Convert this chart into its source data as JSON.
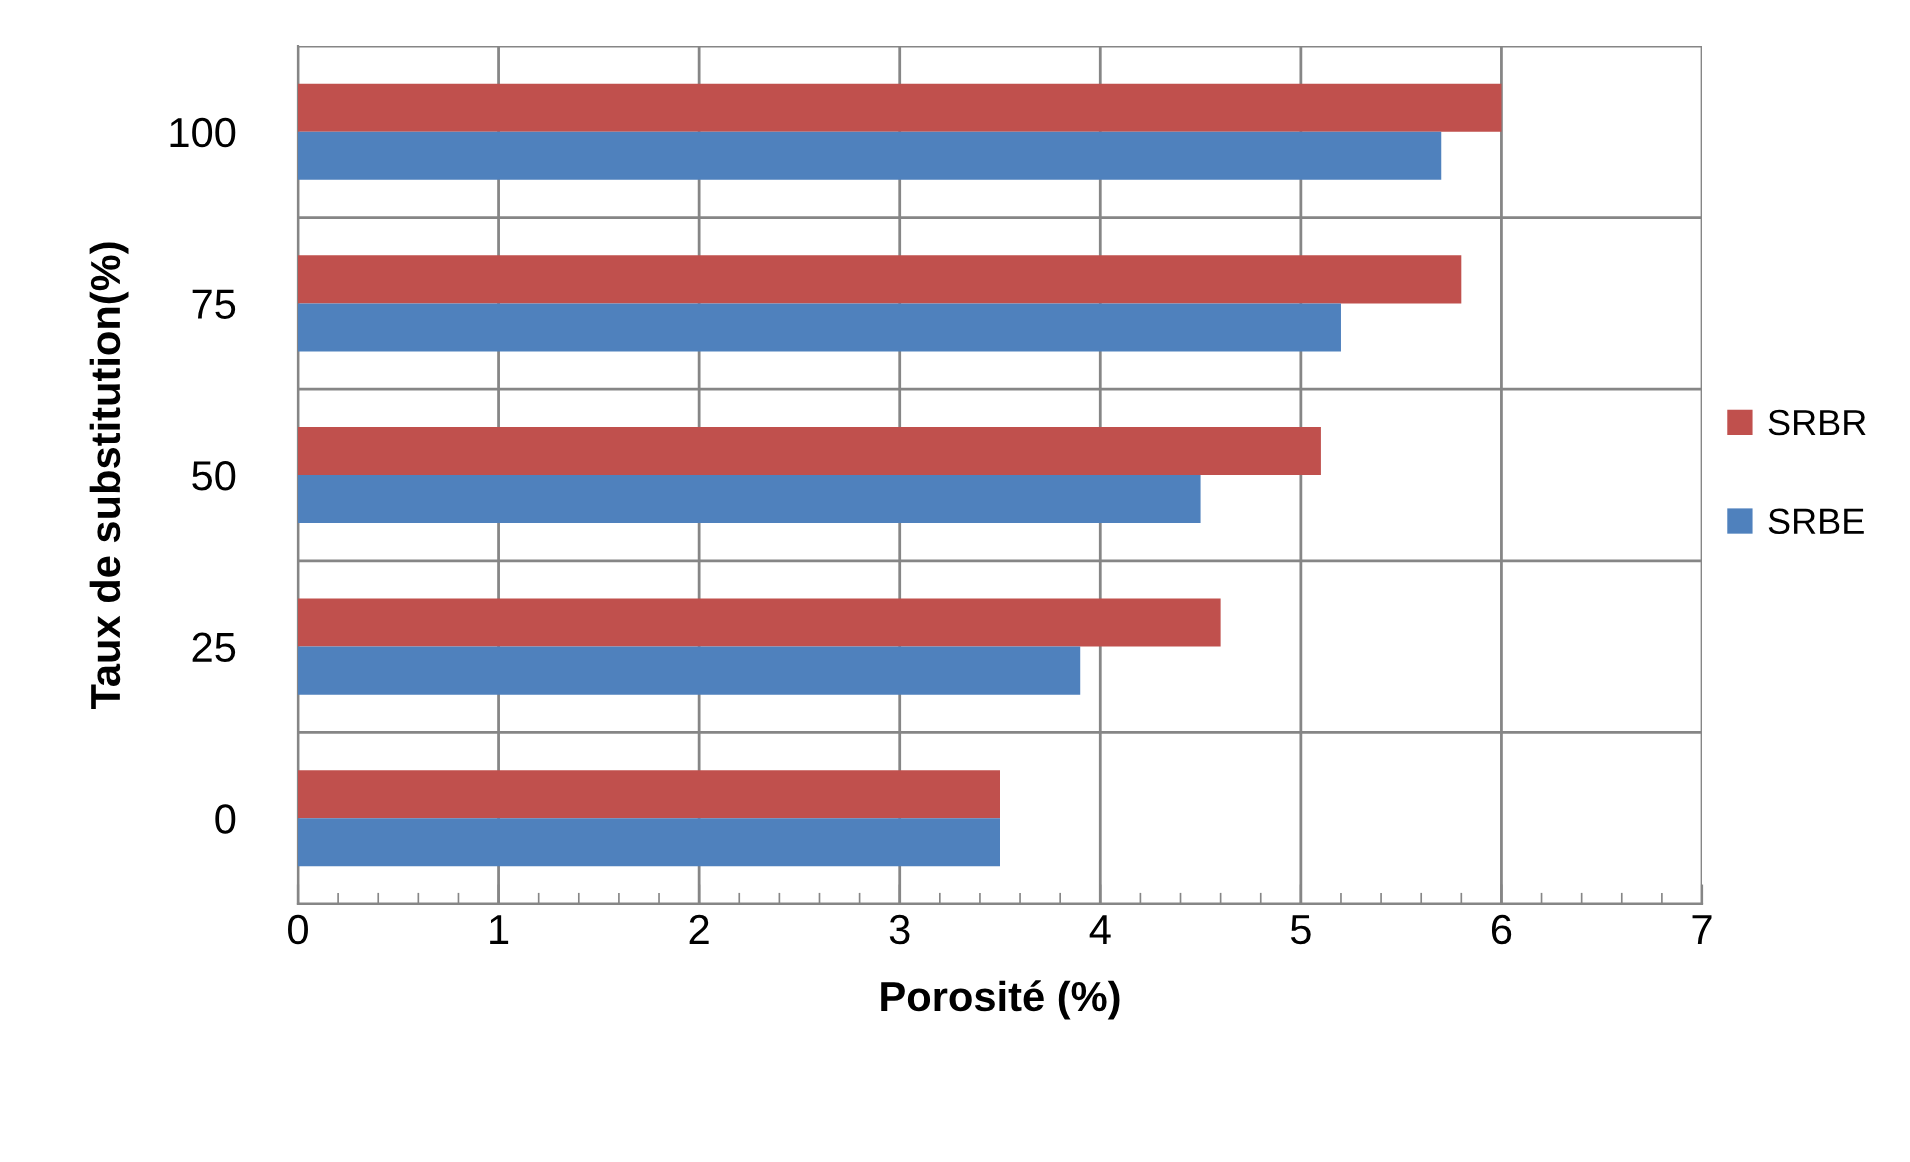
{
  "chart_data": {
    "type": "bar",
    "orientation": "horizontal",
    "xlabel": "Porosité (%)",
    "ylabel": "Taux de substitution(%)",
    "categories": [
      "100",
      "75",
      "50",
      "25",
      "0"
    ],
    "series": [
      {
        "name": "SRBR",
        "color": "#c0504d",
        "values": [
          6.0,
          5.8,
          5.1,
          4.6,
          3.5
        ]
      },
      {
        "name": "SRBE",
        "color": "#4f81bd",
        "values": [
          5.7,
          5.2,
          4.5,
          3.9,
          3.5
        ]
      }
    ],
    "xlim": [
      0,
      7
    ],
    "xticks": [
      0,
      1,
      2,
      3,
      4,
      5,
      6,
      7
    ],
    "grid": true,
    "legend": "right"
  }
}
